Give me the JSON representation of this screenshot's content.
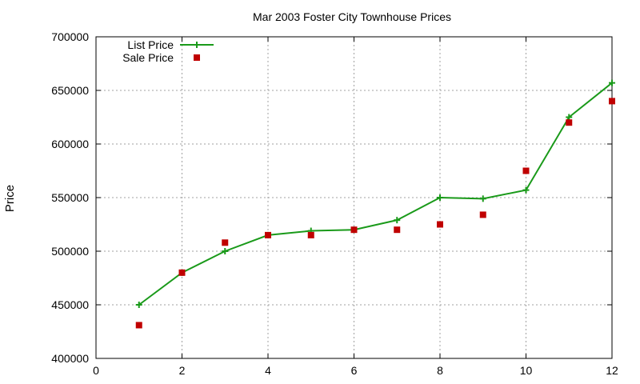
{
  "chart_data": {
    "type": "line",
    "title": "Mar 2003 Foster City Townhouse Prices",
    "xlabel": "",
    "ylabel": "Price",
    "xlim": [
      0,
      12
    ],
    "ylim": [
      400000,
      700000
    ],
    "xticks": [
      0,
      2,
      4,
      6,
      8,
      10,
      12
    ],
    "yticks": [
      400000,
      450000,
      500000,
      550000,
      600000,
      650000,
      700000
    ],
    "grid": true,
    "legend_position": "top-left",
    "series": [
      {
        "name": "List Price",
        "style": "line-with-plus-markers",
        "color": "#1a9a1a",
        "x": [
          1,
          2,
          3,
          4,
          5,
          6,
          7,
          8,
          9,
          10,
          11,
          12
        ],
        "y": [
          450000,
          480000,
          500000,
          515000,
          519000,
          520000,
          529000,
          550000,
          549000,
          557000,
          625000,
          657000
        ]
      },
      {
        "name": "Sale Price",
        "style": "square-markers",
        "color": "#c00000",
        "x": [
          1,
          2,
          3,
          4,
          5,
          6,
          7,
          8,
          9,
          10,
          11,
          12
        ],
        "y": [
          431000,
          480000,
          508000,
          515000,
          515000,
          520000,
          520000,
          525000,
          534000,
          575000,
          620000,
          640000
        ]
      }
    ]
  }
}
